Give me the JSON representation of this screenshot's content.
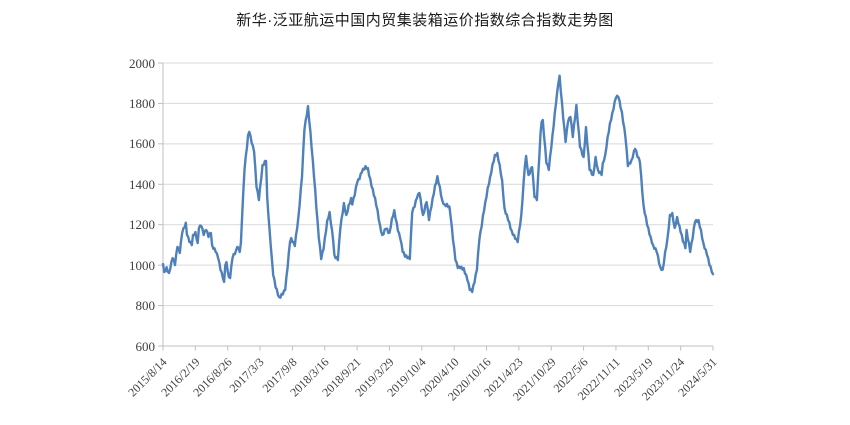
{
  "chart_data": {
    "type": "line",
    "title": "新华·泛亚航运中国内贸集装箱运价指数综合指数走势图",
    "xlabel": "",
    "ylabel": "",
    "ylim": [
      600,
      2000
    ],
    "y_ticks": [
      600,
      800,
      1000,
      1200,
      1400,
      1600,
      1800,
      2000
    ],
    "grid": "horizontal",
    "legend": "none",
    "x_tick_labels": [
      "2015/8/14",
      "2016/2/19",
      "2016/8/26",
      "2017/3/3",
      "2017/9/8",
      "2018/3/16",
      "2018/9/21",
      "2019/3/29",
      "2019/10/4",
      "2020/4/10",
      "2020/10/16",
      "2021/4/23",
      "2021/10/29",
      "2022/5/6",
      "2022/11/11",
      "2023/5/19",
      "2023/11/24",
      "2024/5/31"
    ],
    "x_unit": "week",
    "weeks_per_tick": 27,
    "total_weeks": 459,
    "series": [
      {
        "name": "综合指数",
        "color": "#4E81BC",
        "anchor_points": [
          [
            0,
            1005
          ],
          [
            1,
            966
          ],
          [
            3,
            990
          ],
          [
            5,
            961
          ],
          [
            6,
            980
          ],
          [
            8,
            1035
          ],
          [
            10,
            1000
          ],
          [
            12,
            1090
          ],
          [
            14,
            1060
          ],
          [
            16,
            1159
          ],
          [
            19,
            1210
          ],
          [
            20,
            1149
          ],
          [
            22,
            1114
          ],
          [
            24,
            1099
          ],
          [
            25,
            1149
          ],
          [
            27,
            1164
          ],
          [
            29,
            1109
          ],
          [
            30,
            1183
          ],
          [
            32,
            1193
          ],
          [
            34,
            1149
          ],
          [
            36,
            1174
          ],
          [
            38,
            1139
          ],
          [
            40,
            1159
          ],
          [
            41,
            1099
          ],
          [
            44,
            1065
          ],
          [
            46,
            1035
          ],
          [
            48,
            976
          ],
          [
            50,
            936
          ],
          [
            51,
            917
          ],
          [
            52,
            1000
          ],
          [
            53,
            1015
          ],
          [
            55,
            941
          ],
          [
            56,
            936
          ],
          [
            58,
            1035
          ],
          [
            61,
            1074
          ],
          [
            62,
            1090
          ],
          [
            64,
            1065
          ],
          [
            65,
            1110
          ],
          [
            66,
            1238
          ],
          [
            68,
            1471
          ],
          [
            71,
            1644
          ],
          [
            72,
            1659
          ],
          [
            74,
            1604
          ],
          [
            76,
            1560
          ],
          [
            78,
            1387
          ],
          [
            80,
            1322
          ],
          [
            83,
            1495
          ],
          [
            86,
            1515
          ],
          [
            87,
            1337
          ],
          [
            89,
            1174
          ],
          [
            91,
            1025
          ],
          [
            92,
            951
          ],
          [
            94,
            890
          ],
          [
            97,
            842
          ],
          [
            100,
            855
          ],
          [
            102,
            877
          ],
          [
            106,
            1114
          ],
          [
            107,
            1134
          ],
          [
            110,
            1094
          ],
          [
            113,
            1238
          ],
          [
            116,
            1436
          ],
          [
            118,
            1668
          ],
          [
            121,
            1787
          ],
          [
            125,
            1520
          ],
          [
            130,
            1134
          ],
          [
            132,
            1030
          ],
          [
            134,
            1080
          ],
          [
            137,
            1220
          ],
          [
            139,
            1263
          ],
          [
            142,
            1120
          ],
          [
            143,
            1050
          ],
          [
            146,
            1025
          ],
          [
            148,
            1180
          ],
          [
            151,
            1307
          ],
          [
            153,
            1248
          ],
          [
            157,
            1332
          ],
          [
            158,
            1300
          ],
          [
            162,
            1406
          ],
          [
            166,
            1460
          ],
          [
            169,
            1490
          ],
          [
            171,
            1480
          ],
          [
            174,
            1390
          ],
          [
            177,
            1332
          ],
          [
            181,
            1200
          ],
          [
            183,
            1149
          ],
          [
            186,
            1180
          ],
          [
            189,
            1160
          ],
          [
            191,
            1230
          ],
          [
            193,
            1272
          ],
          [
            196,
            1170
          ],
          [
            198,
            1130
          ],
          [
            200,
            1065
          ],
          [
            204,
            1035
          ],
          [
            206,
            1030
          ],
          [
            208,
            1260
          ],
          [
            212,
            1332
          ],
          [
            214,
            1357
          ],
          [
            217,
            1248
          ],
          [
            220,
            1312
          ],
          [
            222,
            1223
          ],
          [
            225,
            1330
          ],
          [
            229,
            1440
          ],
          [
            233,
            1322
          ],
          [
            235,
            1300
          ],
          [
            239,
            1290
          ],
          [
            240,
            1240
          ],
          [
            244,
            1025
          ],
          [
            246,
            986
          ],
          [
            248,
            985
          ],
          [
            251,
            985
          ],
          [
            254,
            926
          ],
          [
            256,
            877
          ],
          [
            258,
            867
          ],
          [
            262,
            976
          ],
          [
            264,
            1124
          ],
          [
            269,
            1312
          ],
          [
            273,
            1436
          ],
          [
            277,
            1545
          ],
          [
            279,
            1555
          ],
          [
            283,
            1421
          ],
          [
            285,
            1282
          ],
          [
            288,
            1223
          ],
          [
            291,
            1170
          ],
          [
            294,
            1130
          ],
          [
            296,
            1114
          ],
          [
            299,
            1250
          ],
          [
            302,
            1490
          ],
          [
            303,
            1540
          ],
          [
            305,
            1446
          ],
          [
            308,
            1485
          ],
          [
            310,
            1337
          ],
          [
            312,
            1322
          ],
          [
            315,
            1650
          ],
          [
            316,
            1708
          ],
          [
            317,
            1718
          ],
          [
            320,
            1505
          ],
          [
            322,
            1471
          ],
          [
            325,
            1640
          ],
          [
            328,
            1800
          ],
          [
            330,
            1900
          ],
          [
            331,
            1937
          ],
          [
            334,
            1728
          ],
          [
            336,
            1609
          ],
          [
            338,
            1708
          ],
          [
            340,
            1733
          ],
          [
            342,
            1634
          ],
          [
            345,
            1792
          ],
          [
            348,
            1584
          ],
          [
            351,
            1535
          ],
          [
            353,
            1683
          ],
          [
            356,
            1471
          ],
          [
            359,
            1446
          ],
          [
            361,
            1535
          ],
          [
            363,
            1471
          ],
          [
            366,
            1446
          ],
          [
            367,
            1505
          ],
          [
            369,
            1545
          ],
          [
            371,
            1634
          ],
          [
            375,
            1753
          ],
          [
            378,
            1827
          ],
          [
            380,
            1832
          ],
          [
            383,
            1758
          ],
          [
            386,
            1629
          ],
          [
            388,
            1490
          ],
          [
            391,
            1520
          ],
          [
            394,
            1575
          ],
          [
            398,
            1510
          ],
          [
            401,
            1297
          ],
          [
            404,
            1198
          ],
          [
            407,
            1139
          ],
          [
            409,
            1099
          ],
          [
            412,
            1065
          ],
          [
            415,
            991
          ],
          [
            417,
            978
          ],
          [
            421,
            1134
          ],
          [
            423,
            1248
          ],
          [
            425,
            1258
          ],
          [
            427,
            1184
          ],
          [
            429,
            1238
          ],
          [
            432,
            1164
          ],
          [
            436,
            1084
          ],
          [
            437,
            1174
          ],
          [
            440,
            1065
          ],
          [
            444,
            1213
          ],
          [
            447,
            1223
          ],
          [
            451,
            1109
          ],
          [
            454,
            1050
          ],
          [
            458,
            966
          ],
          [
            459,
            955
          ]
        ]
      }
    ]
  },
  "style": {
    "line_color": "#4E81BC",
    "grid_color": "#d9d9d9",
    "axis_color": "#bfbfbf",
    "tick_color": "#bfbfbf",
    "label_color": "#3f3f3f",
    "title_color": "#1a1a1a",
    "background": "#ffffff"
  }
}
